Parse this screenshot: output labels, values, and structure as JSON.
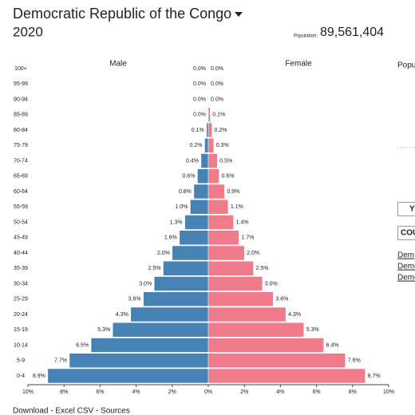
{
  "header": {
    "title": "Democratic Republic of the Congo",
    "year": "2020",
    "population_label": "Population:",
    "population": "89,561,404"
  },
  "chart_data": {
    "type": "pyramid",
    "left_label": "Male",
    "right_label": "Female",
    "categories": [
      "0-4",
      "5-9",
      "10-14",
      "15-19",
      "20-24",
      "25-29",
      "30-34",
      "35-39",
      "40-44",
      "45-49",
      "50-54",
      "55-59",
      "60-64",
      "65-69",
      "70-74",
      "75-79",
      "80-84",
      "85-89",
      "90-94",
      "95-99",
      "100+"
    ],
    "series": [
      {
        "name": "Male",
        "color": "#4682b4",
        "values": [
          8.9,
          7.7,
          6.5,
          5.3,
          4.3,
          3.6,
          3.0,
          2.5,
          2.0,
          1.6,
          1.3,
          1.0,
          0.8,
          0.6,
          0.4,
          0.2,
          0.1,
          0.0,
          0.0,
          0.0,
          0.0
        ],
        "value_labels": [
          "8.9%",
          "7.7%",
          "6.5%",
          "5.3%",
          "4.3%",
          "3.6%",
          "3.0%",
          "2.5%",
          "2.0%",
          "1.6%",
          "1.3%",
          "1.0%",
          "0.8%",
          "0.6%",
          "0.4%",
          "0.2%",
          "0.1%",
          "0.0%",
          "0.0%",
          "0.0%",
          "0.0%"
        ]
      },
      {
        "name": "Female",
        "color": "#f07b8a",
        "values": [
          8.7,
          7.6,
          6.4,
          5.3,
          4.3,
          3.6,
          3.0,
          2.5,
          2.0,
          1.7,
          1.4,
          1.1,
          0.9,
          0.6,
          0.5,
          0.3,
          0.2,
          0.1,
          0.0,
          0.0,
          0.0
        ],
        "value_labels": [
          "8.7%",
          "7.6%",
          "6.4%",
          "5.3%",
          "4.3%",
          "3.6%",
          "3.0%",
          "2.5%",
          "2.0%",
          "1.7%",
          "1.4%",
          "1.1%",
          "0.9%",
          "0.6%",
          "0.5%",
          "0.3%",
          "0.2%",
          "0.1%",
          "0.0%",
          "0.0%",
          "0.0%"
        ]
      }
    ],
    "xlim": [
      0,
      10
    ],
    "xticks": [
      {
        "value": 0,
        "label": "0%"
      },
      {
        "value": 2,
        "label": "2%"
      },
      {
        "value": 4,
        "label": "4%"
      },
      {
        "value": 6,
        "label": "6%"
      },
      {
        "value": 8,
        "label": "8%"
      },
      {
        "value": 10,
        "label": "10%"
      }
    ]
  },
  "side": {
    "heading": "Popu",
    "button_1": "Y",
    "button_2": "COU",
    "links": [
      "Dem",
      "Demo",
      "Demo"
    ]
  },
  "footer": "Download - Excel CSV - Sources"
}
